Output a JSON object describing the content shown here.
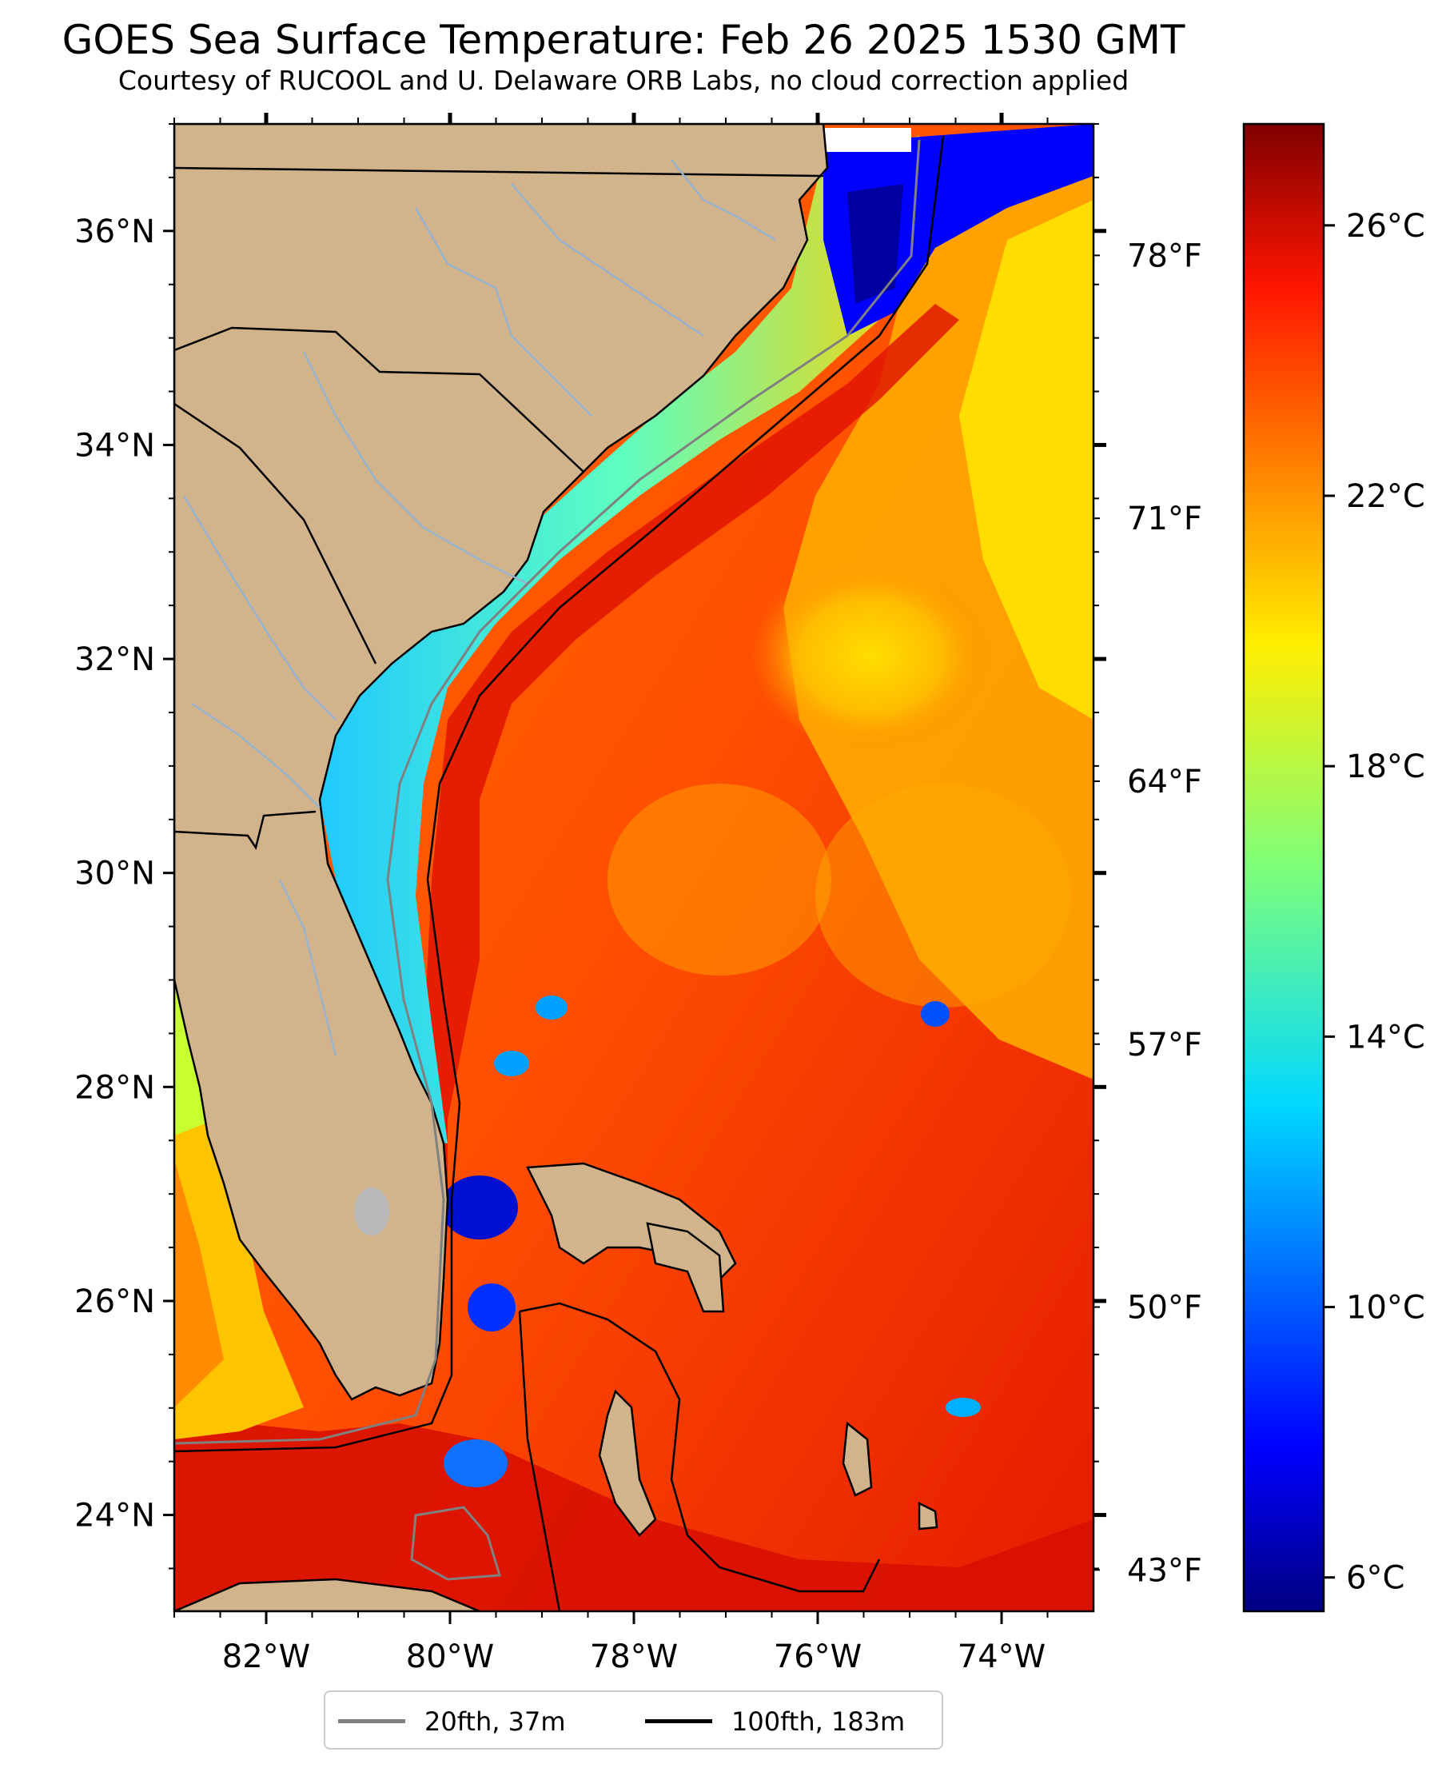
{
  "title": "GOES Sea Surface Temperature: Feb 26 2025 1530 GMT",
  "subtitle": "Courtesy of RUCOOL and U. Delaware ORB Labs, no cloud correction applied",
  "map": {
    "lon_range": [
      -83,
      -73
    ],
    "lat_range": [
      23.1,
      37.0
    ],
    "lon_ticks": [
      "82°W",
      "80°W",
      "78°W",
      "76°W",
      "74°W"
    ],
    "lat_ticks": [
      "36°N",
      "34°N",
      "32°N",
      "30°N",
      "28°N",
      "26°N",
      "24°N"
    ],
    "fahrenheit_ticks": [
      "78°F",
      "71°F",
      "64°F",
      "57°F",
      "50°F",
      "43°F"
    ],
    "land_color": "#d2b48c",
    "river_color": "#99b3cc",
    "lake_color": "#b0b0b0"
  },
  "colorbar": {
    "colormap": "jet",
    "range_c": [
      5.5,
      27.5
    ],
    "tick_labels": [
      "26°C",
      "22°C",
      "18°C",
      "14°C",
      "10°C",
      "6°C"
    ]
  },
  "legend": {
    "items": [
      {
        "label": "20fth, 37m",
        "color": "#808080"
      },
      {
        "label": "100fth, 183m",
        "color": "#000000"
      }
    ]
  }
}
